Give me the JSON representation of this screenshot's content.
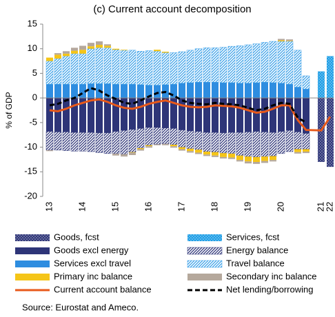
{
  "chart_data": {
    "type": "bar",
    "stacked": true,
    "title": "(c) Current account decomposition",
    "y_label": "% of GDP",
    "source": "Source: Eurostat and Ameco.",
    "categories": [
      "13",
      null,
      null,
      null,
      "14",
      null,
      null,
      null,
      "15",
      null,
      null,
      null,
      "16",
      null,
      null,
      null,
      "17",
      null,
      null,
      null,
      "18",
      null,
      null,
      null,
      "19",
      null,
      null,
      null,
      "20",
      null,
      null,
      null,
      "21",
      "22"
    ],
    "ylim": [
      -20,
      15
    ],
    "yticks": [
      -20,
      -15,
      -10,
      -5,
      0,
      5,
      10,
      15
    ],
    "series": [
      {
        "name": "Goods, fcst",
        "type": "bar",
        "color": "#2e3578",
        "pattern": "dots",
        "values": [
          null,
          null,
          null,
          null,
          null,
          null,
          null,
          null,
          null,
          null,
          null,
          null,
          null,
          null,
          null,
          null,
          null,
          null,
          null,
          null,
          null,
          null,
          null,
          null,
          null,
          null,
          null,
          null,
          null,
          null,
          null,
          null,
          -13.0,
          -14.0
        ]
      },
      {
        "name": "Services, fcst",
        "type": "bar",
        "color": "#1e9ee6",
        "pattern": "dots",
        "values": [
          null,
          null,
          null,
          null,
          null,
          null,
          null,
          null,
          null,
          null,
          null,
          null,
          null,
          null,
          null,
          null,
          null,
          null,
          null,
          null,
          null,
          null,
          null,
          null,
          null,
          null,
          null,
          null,
          null,
          null,
          null,
          null,
          5.4,
          8.5
        ]
      },
      {
        "name": "Goods excl energy",
        "type": "bar",
        "color": "#2e3578",
        "pattern": "solid",
        "values": [
          -6.8,
          -6.9,
          -6.9,
          -7.0,
          -7.0,
          -7.0,
          -7.1,
          -7.1,
          -6.8,
          -6.6,
          -6.4,
          -6.2,
          -6.0,
          -6.0,
          -6.1,
          -6.2,
          -6.5,
          -6.7,
          -6.8,
          -7.0,
          -7.0,
          -7.1,
          -7.0,
          -7.0,
          -6.9,
          -6.8,
          -6.9,
          -7.0,
          -6.8,
          -6.6,
          -6.9,
          -7.2,
          null,
          null
        ]
      },
      {
        "name": "Energy balance",
        "type": "bar",
        "color": "#2e3578",
        "pattern": "stripes",
        "values": [
          -3.8,
          -3.7,
          -3.8,
          -3.8,
          -3.8,
          -3.9,
          -4.0,
          -4.2,
          -4.5,
          -4.8,
          -4.6,
          -4.0,
          -3.6,
          -3.4,
          -3.2,
          -3.3,
          -3.5,
          -3.6,
          -3.7,
          -3.9,
          -4.0,
          -4.1,
          -4.3,
          -4.7,
          -5.0,
          -5.2,
          -5.0,
          -4.8,
          -4.5,
          -4.3,
          -3.5,
          -3.2,
          null,
          null
        ]
      },
      {
        "name": "Services excl travel",
        "type": "bar",
        "color": "#2e8de0",
        "pattern": "solid",
        "values": [
          2.8,
          2.8,
          2.8,
          2.8,
          2.8,
          2.9,
          2.9,
          2.9,
          2.8,
          2.8,
          2.8,
          2.7,
          2.6,
          2.6,
          2.7,
          2.8,
          3.0,
          3.1,
          3.2,
          3.2,
          3.2,
          3.1,
          3.1,
          3.0,
          3.0,
          3.1,
          3.2,
          3.1,
          3.0,
          2.8,
          2.2,
          1.8,
          null,
          null
        ]
      },
      {
        "name": "Travel balance",
        "type": "bar",
        "color": "#3aa0e8",
        "pattern": "stripes",
        "values": [
          4.7,
          5.2,
          5.7,
          6.2,
          6.2,
          7.1,
          7.3,
          7.3,
          7.0,
          6.9,
          6.9,
          6.8,
          7.0,
          6.9,
          6.5,
          6.4,
          6.4,
          6.6,
          6.8,
          7.0,
          7.0,
          7.2,
          7.4,
          7.6,
          7.8,
          7.9,
          8.1,
          8.4,
          8.5,
          8.7,
          7.5,
          2.7,
          null,
          null
        ]
      },
      {
        "name": "Primary inc balance",
        "type": "bar",
        "color": "#f5c518",
        "pattern": "solid",
        "values": [
          0.7,
          0.8,
          0.5,
          0.6,
          0.8,
          0.5,
          0.6,
          0.4,
          0.2,
          0.1,
          -0.1,
          -0.2,
          -0.2,
          0.3,
          0.2,
          -0.3,
          -0.4,
          -0.5,
          -0.6,
          -0.6,
          -0.7,
          -0.8,
          -0.8,
          -0.9,
          -1.0,
          -1.0,
          -0.9,
          -0.8,
          0.2,
          0.1,
          -0.6,
          -0.5,
          null,
          null
        ]
      },
      {
        "name": "Secondary inc balance",
        "type": "bar",
        "color": "#b5a89c",
        "pattern": "solid",
        "values": [
          -0.2,
          0.3,
          0.5,
          0.6,
          0.8,
          0.7,
          0.7,
          0.3,
          -0.4,
          -0.5,
          -0.5,
          -0.3,
          -0.3,
          -0.2,
          -0.3,
          -0.3,
          -0.3,
          -0.3,
          -0.3,
          -0.3,
          -0.3,
          -0.3,
          -0.3,
          -0.3,
          -0.4,
          -0.4,
          -0.4,
          -0.3,
          0.3,
          0.3,
          -0.3,
          -0.3,
          null,
          null
        ]
      },
      {
        "name": "Current account balance",
        "type": "line",
        "color": "#e8591a",
        "dash": "solid",
        "values": [
          -2.5,
          -2.7,
          -2.2,
          -1.5,
          -1.0,
          -0.5,
          -0.3,
          -0.8,
          -1.5,
          -2.0,
          -2.2,
          -1.8,
          -1.2,
          -0.8,
          -0.5,
          -1.0,
          -1.5,
          -1.8,
          -1.9,
          -1.8,
          -1.5,
          -1.6,
          -1.7,
          -2.0,
          -2.5,
          -3.0,
          -2.8,
          -2.2,
          -1.5,
          -1.5,
          -4.5,
          -6.5,
          -6.6,
          -3.8
        ]
      },
      {
        "name": "Net lending/borrowing",
        "type": "line",
        "color": "#000000",
        "dash": "dashed",
        "values": [
          -1.5,
          -1.2,
          -0.5,
          0.0,
          1.0,
          2.0,
          1.5,
          0.5,
          -0.2,
          -1.0,
          -1.2,
          -0.5,
          0.3,
          1.0,
          1.2,
          0.5,
          -0.5,
          -1.0,
          -1.2,
          -1.3,
          -1.0,
          -1.2,
          -1.3,
          -1.5,
          -2.0,
          -2.5,
          -2.2,
          -1.5,
          -1.0,
          -1.2,
          -4.0,
          -5.0,
          null,
          null
        ]
      }
    ]
  }
}
